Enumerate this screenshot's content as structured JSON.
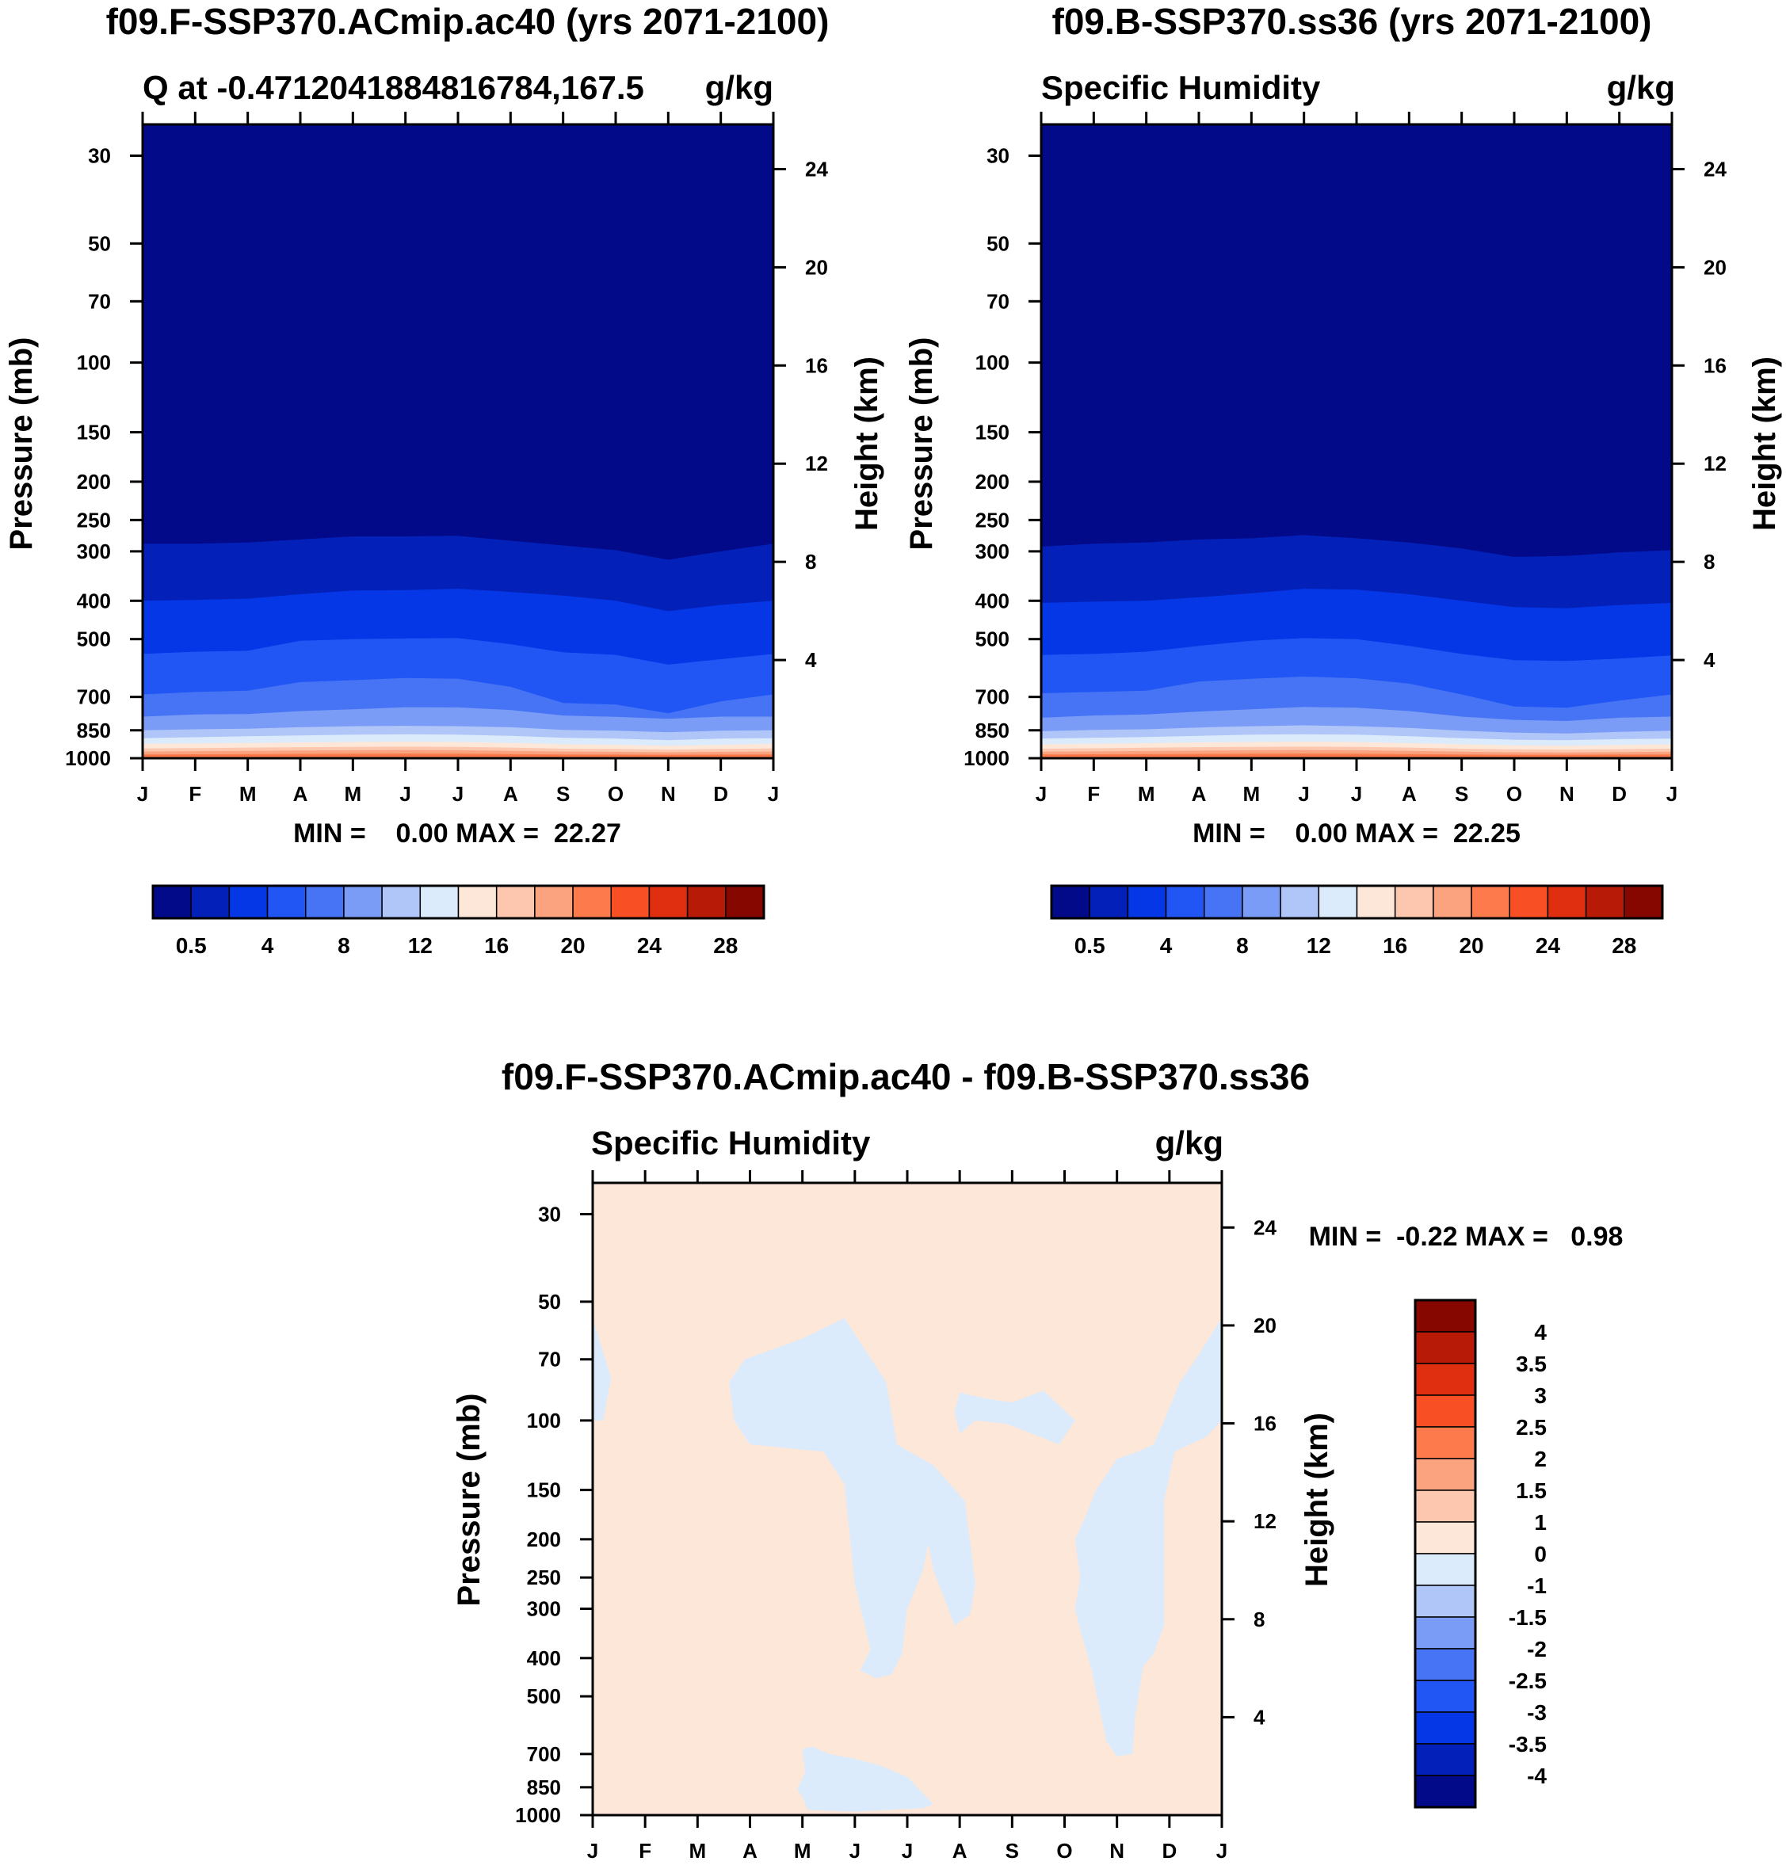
{
  "chart_data": [
    {
      "type": "heatmap",
      "title": "f09.F-SSP370.ACmip.ac40 (yrs 2071-2100)",
      "subtitle_left": "Q at -0.4712041884816784,167.5",
      "subtitle_right": "g/kg",
      "ylabel": "Pressure (mb)",
      "ylabel_right": "Height (km)",
      "x_ticks": [
        "J",
        "F",
        "M",
        "A",
        "M",
        "J",
        "J",
        "A",
        "S",
        "O",
        "N",
        "D",
        "J"
      ],
      "pressure_ticks": [
        30,
        50,
        70,
        100,
        150,
        200,
        250,
        300,
        400,
        500,
        700,
        850,
        1000
      ],
      "height_ticks": [
        24,
        20,
        16,
        12,
        8,
        4
      ],
      "ylim_mb": [
        1000,
        25
      ],
      "min_max_text": "MIN =    0.00 MAX =  22.27",
      "min": 0.0,
      "max": 22.27,
      "colorbar_labels": [
        "0.5",
        "4",
        "8",
        "12",
        "16",
        "20",
        "24",
        "28"
      ],
      "colorbar_colors": [
        "#020a8a",
        "#0321b8",
        "#0637e6",
        "#2156f5",
        "#4674f4",
        "#7a9cf6",
        "#b0c6f8",
        "#dcebfb",
        "#fde7d8",
        "#fcc7ae",
        "#fba27e",
        "#fc7a4c",
        "#f84f24",
        "#e02f10",
        "#b71a06",
        "#860600"
      ],
      "contour_pressure_by_month": {
        "months": [
          "Jan",
          "Feb",
          "Mar",
          "Apr",
          "May",
          "Jun",
          "Jul",
          "Aug",
          "Sep",
          "Oct",
          "Nov",
          "Dec",
          "Jan"
        ],
        "q_0.5": [
          287,
          287,
          285,
          280,
          275,
          275,
          274,
          282,
          290,
          298,
          315,
          300,
          287
        ],
        "q_1": [
          400,
          398,
          395,
          385,
          377,
          376,
          373,
          380,
          388,
          400,
          425,
          410,
          400
        ],
        "q_2": [
          545,
          538,
          535,
          505,
          500,
          498,
          497,
          515,
          540,
          548,
          580,
          562,
          545
        ],
        "q_4": [
          690,
          680,
          675,
          642,
          635,
          627,
          630,
          660,
          725,
          732,
          770,
          718,
          690
        ],
        "q_6": [
          785,
          775,
          773,
          760,
          752,
          743,
          744,
          755,
          780,
          786,
          795,
          785,
          785
        ],
        "q_8": [
          850,
          845,
          842,
          835,
          830,
          828,
          830,
          835,
          848,
          852,
          860,
          852,
          850
        ],
        "q_10": [
          890,
          885,
          880,
          876,
          872,
          870,
          872,
          878,
          888,
          892,
          900,
          892,
          890
        ],
        "q_12": [
          920,
          918,
          915,
          912,
          910,
          908,
          910,
          915,
          922,
          925,
          930,
          925,
          920
        ],
        "q_14": [
          945,
          943,
          940,
          938,
          936,
          935,
          936,
          940,
          946,
          948,
          952,
          948,
          945
        ],
        "q_16": [
          962,
          960,
          958,
          956,
          955,
          954,
          955,
          958,
          962,
          964,
          966,
          964,
          962
        ],
        "q_18": [
          978,
          977,
          976,
          975,
          974,
          973,
          974,
          976,
          978,
          979,
          980,
          979,
          978
        ]
      }
    },
    {
      "type": "heatmap",
      "title": "f09.B-SSP370.ss36 (yrs 2071-2100)",
      "subtitle_left": "Specific Humidity",
      "subtitle_right": "g/kg",
      "ylabel": "Pressure (mb)",
      "ylabel_right": "Height (km)",
      "x_ticks": [
        "J",
        "F",
        "M",
        "A",
        "M",
        "J",
        "J",
        "A",
        "S",
        "O",
        "N",
        "D",
        "J"
      ],
      "pressure_ticks": [
        30,
        50,
        70,
        100,
        150,
        200,
        250,
        300,
        400,
        500,
        700,
        850,
        1000
      ],
      "height_ticks": [
        24,
        20,
        16,
        12,
        8,
        4
      ],
      "ylim_mb": [
        1000,
        25
      ],
      "min_max_text": "MIN =    0.00 MAX =  22.25",
      "min": 0.0,
      "max": 22.25,
      "colorbar_labels": [
        "0.5",
        "4",
        "8",
        "12",
        "16",
        "20",
        "24",
        "28"
      ],
      "colorbar_colors": [
        "#020a8a",
        "#0321b8",
        "#0637e6",
        "#2156f5",
        "#4674f4",
        "#7a9cf6",
        "#b0c6f8",
        "#dcebfb",
        "#fde7d8",
        "#fcc7ae",
        "#fba27e",
        "#fc7a4c",
        "#f84f24",
        "#e02f10",
        "#b71a06",
        "#860600"
      ],
      "contour_pressure_by_month": {
        "months": [
          "Jan",
          "Feb",
          "Mar",
          "Apr",
          "May",
          "Jun",
          "Jul",
          "Aug",
          "Sep",
          "Oct",
          "Nov",
          "Dec",
          "Jan"
        ],
        "q_0.5": [
          292,
          287,
          285,
          280,
          278,
          273,
          278,
          285,
          295,
          310,
          308,
          302,
          298
        ],
        "q_1": [
          405,
          402,
          400,
          392,
          383,
          373,
          375,
          385,
          400,
          415,
          418,
          410,
          405
        ],
        "q_2": [
          548,
          545,
          538,
          520,
          505,
          497,
          500,
          520,
          545,
          565,
          568,
          560,
          550
        ],
        "q_4": [
          685,
          680,
          675,
          640,
          630,
          622,
          628,
          648,
          690,
          740,
          745,
          715,
          690
        ],
        "q_6": [
          790,
          780,
          775,
          762,
          752,
          742,
          745,
          760,
          785,
          800,
          805,
          790,
          785
        ],
        "q_8": [
          855,
          848,
          845,
          836,
          830,
          826,
          830,
          838,
          852,
          862,
          866,
          858,
          852
        ],
        "q_10": [
          892,
          888,
          884,
          878,
          872,
          870,
          872,
          880,
          890,
          898,
          900,
          895,
          892
        ],
        "q_12": [
          922,
          920,
          916,
          912,
          910,
          908,
          910,
          916,
          922,
          928,
          930,
          926,
          922
        ],
        "q_14": [
          946,
          944,
          941,
          938,
          936,
          935,
          936,
          940,
          946,
          950,
          952,
          949,
          946
        ],
        "q_16": [
          963,
          961,
          959,
          957,
          955,
          954,
          955,
          958,
          963,
          966,
          967,
          965,
          963
        ],
        "q_18": [
          978,
          977,
          976,
          975,
          974,
          973,
          974,
          976,
          978,
          980,
          980,
          979,
          978
        ]
      }
    },
    {
      "type": "heatmap",
      "title": "f09.F-SSP370.ACmip.ac40 - f09.B-SSP370.ss36",
      "subtitle_left": "Specific Humidity",
      "subtitle_right": "g/kg",
      "ylabel": "Pressure (mb)",
      "ylabel_right": "Height (km)",
      "x_ticks": [
        "J",
        "F",
        "M",
        "A",
        "M",
        "J",
        "J",
        "A",
        "S",
        "O",
        "N",
        "D",
        "J"
      ],
      "pressure_ticks": [
        30,
        50,
        70,
        100,
        150,
        200,
        250,
        300,
        400,
        500,
        700,
        850,
        1000
      ],
      "height_ticks": [
        24,
        20,
        16,
        12,
        8,
        4
      ],
      "ylim_mb": [
        1000,
        25
      ],
      "min_max_text": "MIN =  -0.22 MAX =   0.98",
      "min": -0.22,
      "max": 0.98,
      "colorbar_labels": [
        "4",
        "3.5",
        "3",
        "2.5",
        "2",
        "1.5",
        "1",
        "0",
        "-1",
        "-1.5",
        "-2",
        "-2.5",
        "-3",
        "-3.5",
        "-4"
      ],
      "colorbar_colors": [
        "#860600",
        "#b71a06",
        "#e02f10",
        "#f84f24",
        "#fc7a4c",
        "#fba27e",
        "#fcc7ae",
        "#fde7d8",
        "#dcebfb",
        "#b0c6f8",
        "#7a9cf6",
        "#4674f4",
        "#2156f5",
        "#0637e6",
        "#0321b8",
        "#020a8a"
      ],
      "background_fill": "#fde7d8",
      "negative_fill": "#dcebfb",
      "negative_regions": [
        {
          "month_pressure": [
            [
              0,
              55
            ],
            [
              0.35,
              78
            ],
            [
              0.2,
              100
            ],
            [
              0,
              100
            ]
          ]
        },
        {
          "month_pressure": [
            [
              2.6,
              80
            ],
            [
              2.9,
              70
            ],
            [
              4,
              62
            ],
            [
              4.8,
              55
            ],
            [
              5.6,
              80
            ],
            [
              5.8,
              115
            ],
            [
              6.5,
              130
            ],
            [
              7.1,
              160
            ],
            [
              7.3,
              260
            ],
            [
              7.2,
              310
            ],
            [
              6.9,
              330
            ],
            [
              6.5,
              240
            ],
            [
              6.4,
              205
            ],
            [
              6.3,
              240
            ],
            [
              6.0,
              300
            ],
            [
              5.9,
              390
            ],
            [
              5.7,
              440
            ],
            [
              5.4,
              450
            ],
            [
              5.1,
              430
            ],
            [
              5.3,
              380
            ],
            [
              5.0,
              260
            ],
            [
              4.8,
              145
            ],
            [
              4.4,
              120
            ],
            [
              3.0,
              115
            ],
            [
              2.7,
              100
            ]
          ]
        },
        {
          "month_pressure": [
            [
              6.9,
              95
            ],
            [
              7.0,
              85
            ],
            [
              7.5,
              88
            ],
            [
              8.0,
              90
            ],
            [
              8.6,
              84
            ],
            [
              9.2,
              100
            ],
            [
              8.9,
              115
            ],
            [
              7.9,
              102
            ],
            [
              7.3,
              100
            ],
            [
              7.0,
              108
            ]
          ]
        },
        {
          "month_pressure": [
            [
              9.4,
              175
            ],
            [
              9.6,
              150
            ],
            [
              10.0,
              125
            ],
            [
              10.4,
              120
            ],
            [
              10.7,
              115
            ],
            [
              10.9,
              100
            ],
            [
              11.2,
              80
            ],
            [
              11.5,
              70
            ],
            [
              12,
              55
            ],
            [
              12,
              100
            ],
            [
              11.7,
              110
            ],
            [
              11.1,
              120
            ],
            [
              10.9,
              160
            ],
            [
              10.9,
              230
            ],
            [
              10.9,
              330
            ],
            [
              10.7,
              390
            ],
            [
              10.5,
              420
            ],
            [
              10.35,
              560
            ],
            [
              10.3,
              700
            ],
            [
              10.0,
              710
            ],
            [
              9.8,
              650
            ],
            [
              9.5,
              420
            ],
            [
              9.3,
              340
            ],
            [
              9.2,
              300
            ],
            [
              9.3,
              250
            ],
            [
              9.2,
              200
            ]
          ]
        },
        {
          "month_pressure": [
            [
              4.0,
              680
            ],
            [
              4.2,
              670
            ],
            [
              4.5,
              700
            ],
            [
              5.0,
              720
            ],
            [
              5.5,
              750
            ],
            [
              6.0,
              800
            ],
            [
              6.3,
              880
            ],
            [
              6.5,
              940
            ],
            [
              6.3,
              960
            ],
            [
              5.0,
              980
            ],
            [
              4.1,
              970
            ],
            [
              4.0,
              900
            ],
            [
              3.9,
              860
            ],
            [
              4.05,
              780
            ]
          ]
        }
      ]
    }
  ]
}
